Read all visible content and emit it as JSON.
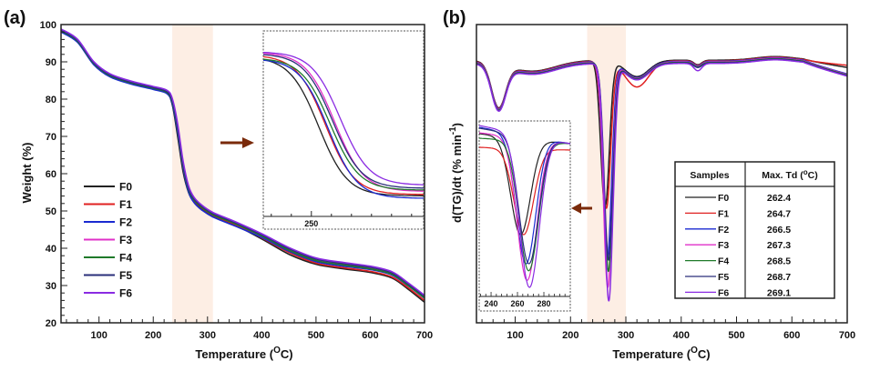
{
  "chart_data": [
    {
      "panel": "(a)",
      "type": "line",
      "title": "",
      "xlabel": "Temperature (°C)",
      "xlabel_main": "Temperature (",
      "xlabel_sup": "O",
      "xlabel_end": "C)",
      "ylabel": "Weight (%)",
      "xlim": [
        30,
        700
      ],
      "ylim": [
        20,
        100
      ],
      "xticks": [
        100,
        200,
        300,
        400,
        500,
        600,
        700
      ],
      "yticks": [
        20,
        30,
        40,
        50,
        60,
        70,
        80,
        90,
        100
      ],
      "highlight_band": [
        235,
        310
      ],
      "legend_position": "left-middle",
      "series": [
        {
          "name": "F0",
          "color": "#222222",
          "x": [
            30,
            60,
            90,
            120,
            160,
            200,
            225,
            235,
            245,
            255,
            265,
            275,
            290,
            310,
            350,
            400,
            450,
            500,
            550,
            600,
            640,
            670,
            700
          ],
          "y": [
            98.2,
            95.5,
            89.5,
            86.2,
            84.2,
            82.8,
            81.6,
            78.5,
            70,
            60.5,
            55,
            52.5,
            50.6,
            48.8,
            46.3,
            42.5,
            38.4,
            35.7,
            34.5,
            33.5,
            32,
            29,
            25.5
          ]
        },
        {
          "name": "F1",
          "color": "#e02020",
          "x": [
            30,
            60,
            90,
            120,
            160,
            200,
            225,
            235,
            245,
            255,
            265,
            275,
            290,
            310,
            350,
            400,
            450,
            500,
            550,
            600,
            640,
            670,
            700
          ],
          "y": [
            98.4,
            95.7,
            89.7,
            86.4,
            84.4,
            83.0,
            81.9,
            79.2,
            71.5,
            61.5,
            55.6,
            52.9,
            50.8,
            48.9,
            46.4,
            42.8,
            38.9,
            36.0,
            34.8,
            33.8,
            32.3,
            29.4,
            26.0
          ]
        },
        {
          "name": "F2",
          "color": "#1a2ad0",
          "x": [
            30,
            60,
            90,
            120,
            160,
            200,
            225,
            235,
            245,
            255,
            265,
            275,
            290,
            310,
            350,
            400,
            450,
            500,
            550,
            600,
            640,
            670,
            700
          ],
          "y": [
            98.0,
            95.3,
            89.3,
            86.0,
            84.0,
            82.6,
            81.5,
            78.8,
            71.2,
            61.5,
            55.2,
            52.3,
            50.2,
            48.4,
            46.0,
            42.9,
            39.2,
            36.4,
            35.2,
            34.3,
            32.8,
            29.9,
            26.6
          ]
        },
        {
          "name": "F3",
          "color": "#e030c8",
          "x": [
            30,
            60,
            90,
            120,
            160,
            200,
            225,
            235,
            245,
            255,
            265,
            275,
            290,
            310,
            350,
            400,
            450,
            500,
            550,
            600,
            640,
            670,
            700
          ],
          "y": [
            98.6,
            95.9,
            89.9,
            86.6,
            84.6,
            83.2,
            82.2,
            79.8,
            72.6,
            62.6,
            56.2,
            53.2,
            51.0,
            49.1,
            46.7,
            43.3,
            39.6,
            36.8,
            35.6,
            34.6,
            33.1,
            30.1,
            26.8
          ]
        },
        {
          "name": "F4",
          "color": "#1f7a2a",
          "x": [
            30,
            60,
            90,
            120,
            160,
            200,
            225,
            235,
            245,
            255,
            265,
            275,
            290,
            310,
            350,
            400,
            450,
            500,
            550,
            600,
            640,
            670,
            700
          ],
          "y": [
            98.3,
            95.6,
            89.6,
            86.3,
            84.3,
            82.9,
            81.8,
            79.3,
            72.0,
            62.2,
            55.9,
            53.0,
            50.9,
            49.0,
            46.6,
            43.3,
            39.5,
            36.7,
            35.5,
            34.5,
            33.0,
            30.0,
            26.7
          ]
        },
        {
          "name": "F5",
          "color": "#2a2f7a",
          "x": [
            30,
            60,
            90,
            120,
            160,
            200,
            225,
            235,
            245,
            255,
            265,
            275,
            290,
            310,
            350,
            400,
            450,
            500,
            550,
            600,
            640,
            670,
            700
          ],
          "y": [
            98.5,
            95.8,
            89.8,
            86.5,
            84.5,
            83.1,
            82.0,
            79.6,
            72.4,
            62.6,
            56.2,
            53.3,
            51.2,
            49.3,
            46.9,
            43.6,
            39.9,
            37.1,
            35.9,
            34.9,
            33.4,
            30.4,
            27.1
          ]
        },
        {
          "name": "F6",
          "color": "#8a2be2",
          "x": [
            30,
            60,
            90,
            120,
            160,
            200,
            225,
            235,
            245,
            255,
            265,
            275,
            290,
            310,
            350,
            400,
            450,
            500,
            550,
            600,
            640,
            670,
            700
          ],
          "y": [
            98.8,
            96.1,
            90.1,
            86.8,
            84.8,
            83.4,
            82.4,
            80.2,
            73.4,
            63.4,
            56.8,
            53.7,
            51.5,
            49.6,
            47.2,
            43.9,
            40.2,
            37.4,
            36.2,
            35.2,
            33.7,
            30.7,
            27.4
          ]
        }
      ],
      "inset": {
        "xlabel_ticks": [
          250
        ],
        "x_range": [
          235,
          275
        ],
        "note": "magnified view of the 235–275 °C decomposition region"
      },
      "annotation": "arrow pointing from highlight band to inset"
    },
    {
      "panel": "(b)",
      "type": "line",
      "title": "",
      "xlabel": "Temperature (°C)",
      "xlabel_main": "Temperature (",
      "xlabel_sup": "O",
      "xlabel_end": "C)",
      "ylabel": "d(TG)/dt (% min-1)",
      "ylabel_main": "d(TG)/dt (% min",
      "ylabel_sup": "-1",
      "ylabel_end": ")",
      "xlim": [
        30,
        700
      ],
      "xticks": [
        100,
        200,
        300,
        400,
        500,
        600,
        700
      ],
      "yticks": [],
      "highlight_band": [
        230,
        300
      ],
      "inset": {
        "xticks": [
          240,
          260,
          280
        ],
        "x_range": [
          230,
          300
        ]
      },
      "table": {
        "headers": [
          "Samples",
          "Max. Td (°C)"
        ],
        "header_main": "Max. Td (",
        "header_sup": "o",
        "header_end": "C)",
        "rows": [
          {
            "sample": "F0",
            "color": "#222222",
            "max_td": "262.4"
          },
          {
            "sample": "F1",
            "color": "#e02020",
            "max_td": "264.7"
          },
          {
            "sample": "F2",
            "color": "#1a2ad0",
            "max_td": "266.5"
          },
          {
            "sample": "F3",
            "color": "#e030c8",
            "max_td": "267.3"
          },
          {
            "sample": "F4",
            "color": "#1f7a2a",
            "max_td": "268.5"
          },
          {
            "sample": "F5",
            "color": "#2a2f7a",
            "max_td": "268.7"
          },
          {
            "sample": "F6",
            "color": "#8a2be2",
            "max_td": "269.1"
          }
        ]
      },
      "peak_depth": {
        "F0": 0.62,
        "F1": 0.62,
        "F2": 0.83,
        "F3": 0.95,
        "F4": 0.88,
        "F5": 0.83,
        "F6": 1.0
      },
      "annotation": "arrow pointing from peak to inset"
    }
  ],
  "colors": {
    "highlight": "#fdeee4",
    "arrow": "#7a2a0a",
    "axis": "#222222"
  }
}
